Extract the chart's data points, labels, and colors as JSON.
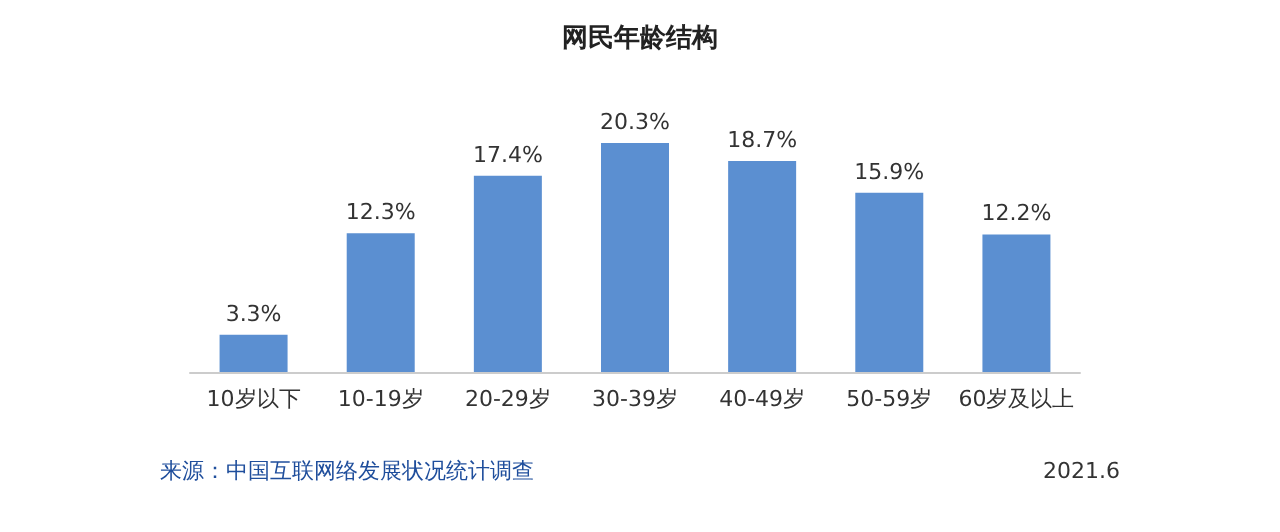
{
  "chart_data": {
    "type": "bar",
    "title": "网民年龄结构",
    "categories": [
      "10岁以下",
      "10-19岁",
      "20-29岁",
      "30-39岁",
      "40-49岁",
      "50-59岁",
      "60岁及以上"
    ],
    "values": [
      3.3,
      12.3,
      17.4,
      20.3,
      18.7,
      15.9,
      12.2
    ],
    "value_labels": [
      "3.3%",
      "12.3%",
      "17.4%",
      "20.3%",
      "18.7%",
      "15.9%",
      "12.2%"
    ],
    "color": "#5b8fd1",
    "annotations": [
      "来源：中国互联网络发展状况统计调查",
      "2021.6"
    ]
  }
}
